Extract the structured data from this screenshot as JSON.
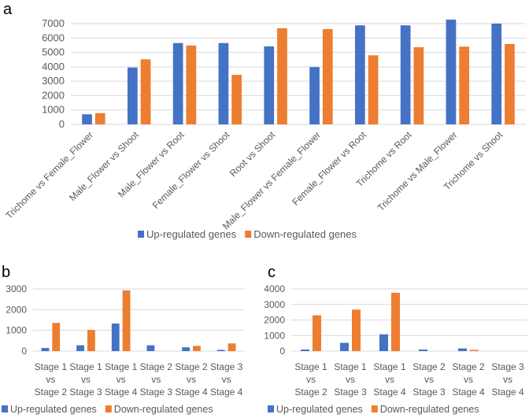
{
  "colors": {
    "up": "#4472C4",
    "down": "#ED7D31",
    "grid": "#D9D9D9"
  },
  "chart_data": [
    {
      "panel": "a",
      "type": "bar",
      "categories": [
        "Trichome vs Female_Flower",
        "Male_Flower vs Shoot",
        "Male_Flower vs Root",
        "Female_Flower vs Shoot",
        "Root vs Shoot",
        "Male_Flower vs Female_Flower",
        "Female_Flower vs Root",
        "Trichome vs Root",
        "Trichome vs Male_Flower",
        "Trichome vs Shoot"
      ],
      "series": [
        {
          "name": "Up-regulated genes",
          "values": [
            700,
            3950,
            5650,
            5650,
            5420,
            3980,
            6880,
            6880,
            7280,
            7000
          ]
        },
        {
          "name": "Down-regulated genes",
          "values": [
            780,
            4520,
            5480,
            3440,
            6680,
            6620,
            4800,
            5360,
            5400,
            5580
          ]
        }
      ],
      "yticks": [
        0,
        1000,
        2000,
        3000,
        4000,
        5000,
        6000,
        7000
      ],
      "ylim": [
        0,
        7000
      ],
      "grid": true,
      "legend": "bottom"
    },
    {
      "panel": "b",
      "type": "bar",
      "categories": [
        [
          "Stage 1",
          "vs",
          "Stage 2"
        ],
        [
          "Stage 1",
          "vs",
          "Stage 3"
        ],
        [
          "Stage 1",
          "vs",
          "Stage 4"
        ],
        [
          "Stage 2",
          "vs",
          "Stage 3"
        ],
        [
          "Stage 2",
          "vs",
          "Stage 4"
        ],
        [
          "Stage 3",
          "vs",
          "Stage 4"
        ]
      ],
      "series": [
        {
          "name": "Up-regulated genes",
          "values": [
            150,
            280,
            1330,
            280,
            180,
            60
          ]
        },
        {
          "name": "Down-regulated genes",
          "values": [
            1360,
            1020,
            2930,
            0,
            250,
            370
          ]
        }
      ],
      "yticks": [
        0,
        1000,
        2000,
        3000
      ],
      "ylim": [
        0,
        3000
      ],
      "grid": true,
      "legend": "bottom"
    },
    {
      "panel": "c",
      "type": "bar",
      "categories": [
        [
          "Stage 1",
          "vs",
          "Stage 2"
        ],
        [
          "Stage 1",
          "vs",
          "Stage 3"
        ],
        [
          "Stage 1",
          "vs",
          "Stage 4"
        ],
        [
          "Stage 2",
          "vs",
          "Stage 3"
        ],
        [
          "Stage 2",
          "vs",
          "Stage 4"
        ],
        [
          "Stage 3",
          "vs",
          "Stage 4"
        ]
      ],
      "series": [
        {
          "name": "Up-regulated genes",
          "values": [
            100,
            530,
            1080,
            100,
            170,
            0
          ]
        },
        {
          "name": "Down-regulated genes",
          "values": [
            2300,
            2670,
            3750,
            0,
            80,
            0
          ]
        }
      ],
      "yticks": [
        0,
        1000,
        2000,
        3000,
        4000
      ],
      "ylim": [
        0,
        4000
      ],
      "grid": true,
      "legend": "bottom"
    }
  ]
}
